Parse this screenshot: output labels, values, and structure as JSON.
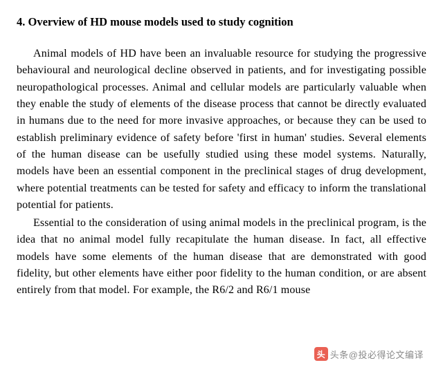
{
  "section": {
    "number": "4.",
    "title": "Overview of HD mouse models used to study cognition"
  },
  "paragraphs": {
    "p1": "Animal models of HD have been an invaluable resource for studying the progressive behavioural and neurological decline observed in patients, and for investigating possible neuropathological processes. Animal and cellular models are particularly valuable when they enable the study of elements of the disease process that cannot be directly evaluated in humans due to the need for more invasive approaches, or because they can be used to establish preliminary evidence of safety before 'first in human' studies. Several elements of the human disease can be usefully studied using these model systems. Naturally, models have been an essential component in the preclinical stages of drug development, where potential treatments can be tested for safety and efficacy to inform the translational potential for patients.",
    "p2": "Essential to the consideration of using animal models in the preclinical program, is the idea that no animal model fully recapitulate the human disease. In fact, all effective models have some elements of the human disease that are demonstrated with good fidelity, but other elements have either poor fidelity to the human condition, or are absent entirely from that model. For example, the R6/2 and R6/1 mouse"
  },
  "watermark": {
    "icon_text": "头",
    "label": "头条@投必得论文编译"
  },
  "colors": {
    "text": "#000000",
    "background": "#ffffff",
    "watermark_icon_bg": "#e84c3d",
    "watermark_text": "#7a7a7a"
  },
  "typography": {
    "heading_fontsize": 16.5,
    "body_fontsize": 16,
    "line_height": 1.52,
    "text_indent": 24
  }
}
